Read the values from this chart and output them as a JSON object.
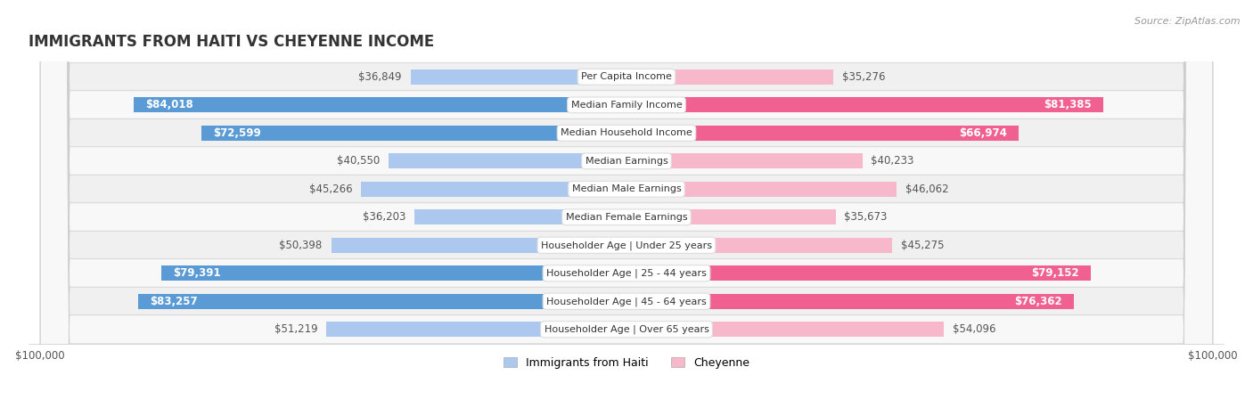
{
  "title": "IMMIGRANTS FROM HAITI VS CHEYENNE INCOME",
  "source": "Source: ZipAtlas.com",
  "categories": [
    "Per Capita Income",
    "Median Family Income",
    "Median Household Income",
    "Median Earnings",
    "Median Male Earnings",
    "Median Female Earnings",
    "Householder Age | Under 25 years",
    "Householder Age | 25 - 44 years",
    "Householder Age | 45 - 64 years",
    "Householder Age | Over 65 years"
  ],
  "haiti_values": [
    36849,
    84018,
    72599,
    40550,
    45266,
    36203,
    50398,
    79391,
    83257,
    51219
  ],
  "cheyenne_values": [
    35276,
    81385,
    66974,
    40233,
    46062,
    35673,
    45275,
    79152,
    76362,
    54096
  ],
  "haiti_labels": [
    "$36,849",
    "$84,018",
    "$72,599",
    "$40,550",
    "$45,266",
    "$36,203",
    "$50,398",
    "$79,391",
    "$83,257",
    "$51,219"
  ],
  "cheyenne_labels": [
    "$35,276",
    "$81,385",
    "$66,974",
    "$40,233",
    "$46,062",
    "$35,673",
    "$45,275",
    "$79,152",
    "$76,362",
    "$54,096"
  ],
  "max_value": 100000,
  "haiti_color_light": "#adc8ee",
  "haiti_color_dark": "#5b9bd5",
  "cheyenne_color_light": "#f8b8cc",
  "cheyenne_color_dark": "#f06090",
  "haiti_threshold": 60000,
  "cheyenne_threshold": 60000,
  "bar_height": 0.55,
  "row_colors": [
    "#f0f0f0",
    "#f8f8f8"
  ],
  "label_fontsize": 8.5,
  "title_fontsize": 12,
  "legend_fontsize": 9,
  "label_dark_color": "#555555",
  "label_white_color": "white"
}
